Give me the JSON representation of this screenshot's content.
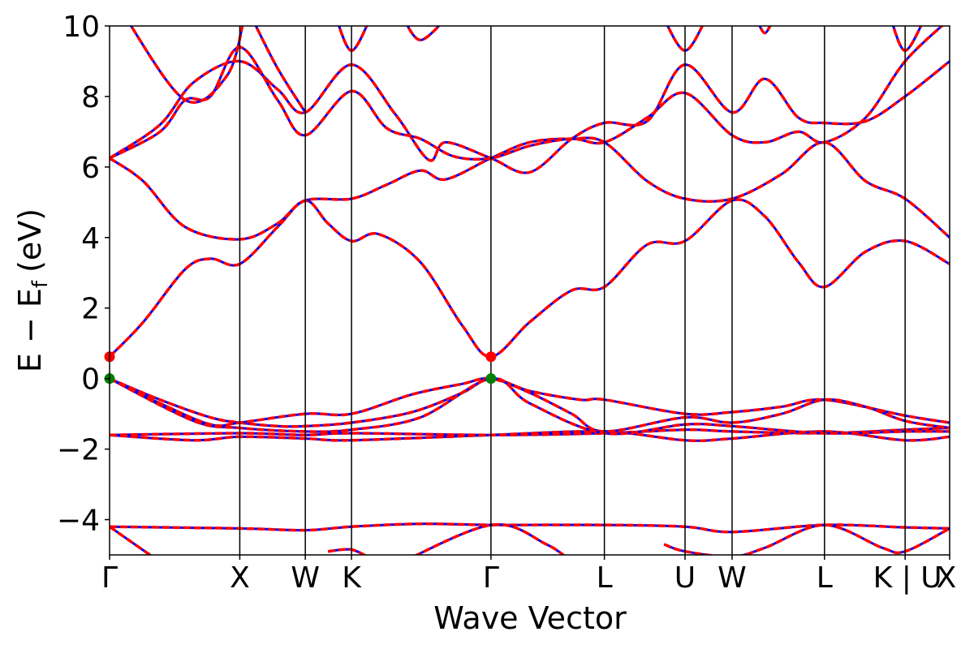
{
  "chart_data": {
    "type": "line",
    "title": "",
    "xlabel": "Wave Vector",
    "ylabel": "E − E",
    "ylabel_sub": "f",
    "ylabel_unit": "(eV)",
    "ylim": [
      -5,
      10
    ],
    "yticks": [
      {
        "value": 10,
        "label": "10"
      },
      {
        "value": 8,
        "label": "8"
      },
      {
        "value": 6,
        "label": "6"
      },
      {
        "value": 4,
        "label": "4"
      },
      {
        "value": 2,
        "label": "2"
      },
      {
        "value": 0,
        "label": "0"
      },
      {
        "value": -2,
        "label": "−2"
      },
      {
        "value": -4,
        "label": "−4"
      }
    ],
    "xlim": [
      0,
      1
    ],
    "kpoints": [
      {
        "label": "Γ",
        "x": 0.0
      },
      {
        "label": "X",
        "x": 0.155
      },
      {
        "label": "W",
        "x": 0.233
      },
      {
        "label": "K",
        "x": 0.288
      },
      {
        "label": "Γ",
        "x": 0.454
      },
      {
        "label": "L",
        "x": 0.589
      },
      {
        "label": "U",
        "x": 0.685
      },
      {
        "label": "W",
        "x": 0.741
      },
      {
        "label": "L",
        "x": 0.851
      },
      {
        "label": "K | U",
        "x": 0.947
      },
      {
        "label": "X",
        "x": 1.0
      }
    ],
    "grid": false,
    "legend": "none",
    "colors": {
      "series_a": "#ff0000",
      "series_b": "#0000ff",
      "cbm": "#ff0000",
      "vbm": "#008000"
    },
    "extrema": [
      {
        "kind": "cbm",
        "x": 0.0,
        "y": 0.62
      },
      {
        "kind": "cbm",
        "x": 0.454,
        "y": 0.62
      },
      {
        "kind": "vbm",
        "x": 0.0,
        "y": 0.0
      },
      {
        "kind": "vbm",
        "x": 0.454,
        "y": 0.0
      }
    ],
    "bands": [
      {
        "points": [
          [
            0,
            -4.2
          ],
          [
            0.155,
            -4.25
          ],
          [
            0.233,
            -4.3
          ],
          [
            0.288,
            -4.2
          ],
          [
            0.37,
            -4.12
          ],
          [
            0.454,
            -4.15
          ],
          [
            0.589,
            -4.15
          ],
          [
            0.685,
            -4.2
          ],
          [
            0.741,
            -4.35
          ],
          [
            0.851,
            -4.15
          ],
          [
            0.947,
            -4.22
          ],
          [
            1.0,
            -4.25
          ]
        ]
      },
      {
        "points": [
          [
            0,
            -4.2
          ],
          [
            0.06,
            -5.2
          ]
        ]
      },
      {
        "points": [
          [
            0.26,
            -4.9
          ],
          [
            0.288,
            -4.85
          ],
          [
            0.31,
            -5.1
          ]
        ]
      },
      {
        "points": [
          [
            0.34,
            -5.3
          ],
          [
            0.454,
            -4.15
          ],
          [
            0.52,
            -4.7
          ],
          [
            0.55,
            -5.2
          ]
        ]
      },
      {
        "points": [
          [
            0.66,
            -4.7
          ],
          [
            0.685,
            -4.9
          ],
          [
            0.741,
            -5.05
          ],
          [
            0.78,
            -4.8
          ],
          [
            0.851,
            -4.15
          ],
          [
            0.92,
            -4.8
          ],
          [
            0.947,
            -4.9
          ],
          [
            1.0,
            -4.25
          ]
        ]
      },
      {
        "points": [
          [
            0,
            -1.6
          ],
          [
            0.155,
            -1.55
          ],
          [
            0.233,
            -1.6
          ],
          [
            0.288,
            -1.55
          ],
          [
            0.454,
            -1.6
          ],
          [
            0.589,
            -1.55
          ],
          [
            0.685,
            -1.45
          ],
          [
            0.741,
            -1.5
          ],
          [
            0.851,
            -1.55
          ],
          [
            0.947,
            -1.45
          ],
          [
            1.0,
            -1.4
          ]
        ]
      },
      {
        "points": [
          [
            0,
            -1.6
          ],
          [
            0.1,
            -1.75
          ],
          [
            0.155,
            -1.65
          ],
          [
            0.233,
            -1.7
          ],
          [
            0.288,
            -1.75
          ],
          [
            0.454,
            -1.6
          ],
          [
            0.589,
            -1.5
          ],
          [
            0.685,
            -1.75
          ],
          [
            0.741,
            -1.7
          ],
          [
            0.851,
            -1.5
          ],
          [
            0.947,
            -1.75
          ],
          [
            1.0,
            -1.65
          ]
        ]
      },
      {
        "points": [
          [
            0,
            0.0
          ],
          [
            0.06,
            -0.6
          ],
          [
            0.12,
            -1.1
          ],
          [
            0.155,
            -1.25
          ],
          [
            0.2,
            -1.35
          ],
          [
            0.233,
            -1.35
          ],
          [
            0.288,
            -1.25
          ],
          [
            0.36,
            -0.95
          ],
          [
            0.42,
            -0.4
          ],
          [
            0.454,
            0.0
          ],
          [
            0.5,
            -0.35
          ],
          [
            0.56,
            -0.6
          ],
          [
            0.589,
            -0.6
          ],
          [
            0.685,
            -1.0
          ],
          [
            0.741,
            -0.95
          ],
          [
            0.8,
            -0.8
          ],
          [
            0.851,
            -0.6
          ],
          [
            0.947,
            -1.05
          ],
          [
            1.0,
            -1.25
          ]
        ]
      },
      {
        "points": [
          [
            0,
            0.0
          ],
          [
            0.06,
            -0.7
          ],
          [
            0.12,
            -1.3
          ],
          [
            0.155,
            -1.25
          ],
          [
            0.233,
            -1.0
          ],
          [
            0.288,
            -1.0
          ],
          [
            0.36,
            -0.45
          ],
          [
            0.42,
            -0.15
          ],
          [
            0.454,
            0.0
          ],
          [
            0.5,
            -0.4
          ],
          [
            0.55,
            -1.0
          ],
          [
            0.589,
            -1.5
          ],
          [
            0.685,
            -1.1
          ],
          [
            0.741,
            -1.25
          ],
          [
            0.8,
            -1.0
          ],
          [
            0.851,
            -0.6
          ],
          [
            0.9,
            -0.8
          ],
          [
            0.947,
            -1.2
          ],
          [
            1.0,
            -1.4
          ]
        ]
      },
      {
        "points": [
          [
            0,
            0.0
          ],
          [
            0.1,
            -1.2
          ],
          [
            0.155,
            -1.4
          ],
          [
            0.233,
            -1.5
          ],
          [
            0.288,
            -1.45
          ],
          [
            0.37,
            -1.1
          ],
          [
            0.454,
            0.0
          ],
          [
            0.5,
            -0.7
          ],
          [
            0.589,
            -1.55
          ],
          [
            0.685,
            -1.3
          ],
          [
            0.741,
            -1.35
          ],
          [
            0.851,
            -1.55
          ],
          [
            0.947,
            -1.5
          ],
          [
            1.0,
            -1.5
          ]
        ]
      },
      {
        "points": [
          [
            0,
            0.62
          ],
          [
            0.04,
            1.6
          ],
          [
            0.09,
            3.1
          ],
          [
            0.12,
            3.4
          ],
          [
            0.155,
            3.25
          ],
          [
            0.2,
            4.3
          ],
          [
            0.233,
            5.05
          ],
          [
            0.26,
            4.4
          ],
          [
            0.288,
            3.9
          ],
          [
            0.32,
            4.1
          ],
          [
            0.37,
            3.3
          ],
          [
            0.42,
            1.5
          ],
          [
            0.454,
            0.62
          ],
          [
            0.5,
            1.6
          ],
          [
            0.55,
            2.5
          ],
          [
            0.589,
            2.6
          ],
          [
            0.64,
            3.8
          ],
          [
            0.685,
            3.9
          ],
          [
            0.741,
            5.05
          ],
          [
            0.78,
            4.6
          ],
          [
            0.82,
            3.3
          ],
          [
            0.851,
            2.6
          ],
          [
            0.9,
            3.6
          ],
          [
            0.947,
            3.9
          ],
          [
            1.0,
            3.25
          ]
        ]
      },
      {
        "points": [
          [
            0,
            6.25
          ],
          [
            0.04,
            5.6
          ],
          [
            0.09,
            4.3
          ],
          [
            0.155,
            3.95
          ],
          [
            0.2,
            4.4
          ],
          [
            0.233,
            5.05
          ],
          [
            0.288,
            5.1
          ],
          [
            0.33,
            5.5
          ],
          [
            0.37,
            5.9
          ],
          [
            0.4,
            5.65
          ],
          [
            0.454,
            6.25
          ],
          [
            0.5,
            6.7
          ],
          [
            0.55,
            6.8
          ],
          [
            0.589,
            6.7
          ],
          [
            0.64,
            5.6
          ],
          [
            0.685,
            5.1
          ],
          [
            0.741,
            5.1
          ],
          [
            0.8,
            5.8
          ],
          [
            0.851,
            6.7
          ],
          [
            0.9,
            5.6
          ],
          [
            0.947,
            5.1
          ],
          [
            1.0,
            4.0
          ]
        ]
      },
      {
        "points": [
          [
            0,
            6.25
          ],
          [
            0.06,
            7.2
          ],
          [
            0.1,
            8.4
          ],
          [
            0.155,
            9.0
          ],
          [
            0.2,
            8.2
          ],
          [
            0.233,
            7.55
          ],
          [
            0.288,
            8.9
          ],
          [
            0.34,
            7.5
          ],
          [
            0.38,
            6.2
          ],
          [
            0.4,
            6.7
          ],
          [
            0.454,
            6.25
          ],
          [
            0.5,
            5.85
          ],
          [
            0.55,
            6.8
          ],
          [
            0.589,
            7.25
          ],
          [
            0.64,
            7.3
          ],
          [
            0.685,
            8.9
          ],
          [
            0.741,
            7.55
          ],
          [
            0.78,
            8.5
          ],
          [
            0.82,
            7.4
          ],
          [
            0.851,
            7.25
          ],
          [
            0.9,
            7.3
          ],
          [
            0.947,
            8.0
          ],
          [
            1.0,
            9.0
          ]
        ]
      },
      {
        "points": [
          [
            0,
            6.25
          ],
          [
            0.06,
            7.0
          ],
          [
            0.09,
            7.9
          ],
          [
            0.12,
            8.0
          ],
          [
            0.155,
            9.4
          ],
          [
            0.2,
            7.9
          ],
          [
            0.233,
            6.9
          ],
          [
            0.288,
            8.15
          ],
          [
            0.33,
            7.1
          ],
          [
            0.37,
            6.8
          ],
          [
            0.41,
            6.3
          ],
          [
            0.454,
            6.25
          ],
          [
            0.5,
            6.6
          ],
          [
            0.55,
            6.8
          ],
          [
            0.589,
            6.7
          ],
          [
            0.64,
            7.4
          ],
          [
            0.685,
            8.1
          ],
          [
            0.741,
            6.9
          ],
          [
            0.78,
            6.7
          ],
          [
            0.82,
            7.0
          ],
          [
            0.851,
            6.7
          ],
          [
            0.9,
            7.4
          ],
          [
            0.947,
            9.0
          ],
          [
            1.0,
            10.2
          ]
        ]
      },
      {
        "points": [
          [
            0.02,
            10.2
          ],
          [
            0.09,
            7.9
          ],
          [
            0.14,
            8.6
          ],
          [
            0.16,
            10.2
          ]
        ]
      },
      {
        "points": [
          [
            0.17,
            10.2
          ],
          [
            0.2,
            8.8
          ],
          [
            0.233,
            7.55
          ]
        ]
      },
      {
        "points": [
          [
            0.27,
            10.2
          ],
          [
            0.288,
            9.3
          ],
          [
            0.31,
            10.2
          ]
        ]
      },
      {
        "points": [
          [
            0.35,
            10.2
          ],
          [
            0.37,
            9.6
          ],
          [
            0.4,
            10.2
          ]
        ]
      },
      {
        "points": [
          [
            0.66,
            10.2
          ],
          [
            0.685,
            9.3
          ],
          [
            0.71,
            10.2
          ]
        ]
      },
      {
        "points": [
          [
            0.77,
            10.2
          ],
          [
            0.78,
            9.8
          ],
          [
            0.79,
            10.2
          ]
        ]
      },
      {
        "points": [
          [
            0.93,
            10.2
          ],
          [
            0.947,
            9.3
          ],
          [
            0.97,
            10.2
          ]
        ]
      }
    ]
  }
}
